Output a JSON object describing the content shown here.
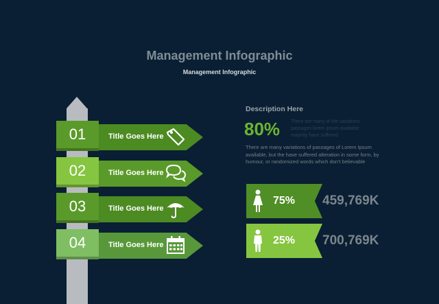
{
  "header": {
    "title": "Management Infographic",
    "subtitle": "Management Infographic"
  },
  "steps": [
    {
      "number": "01",
      "title": "Title Goes Here",
      "icon": "tag-icon",
      "num_color": "#5a9a2a",
      "arrow_color": "#4c8a22"
    },
    {
      "number": "02",
      "title": "Title Goes Here",
      "icon": "chat-bubbles-icon",
      "num_color": "#86c540",
      "arrow_color": "#5a9a2a"
    },
    {
      "number": "03",
      "title": "Title Goes Here",
      "icon": "umbrella-icon",
      "num_color": "#5a9a2a",
      "arrow_color": "#4c8a22"
    },
    {
      "number": "04",
      "title": "Title Goes Here",
      "icon": "calendar-icon",
      "num_color": "#7fbe62",
      "arrow_color": "#58983a"
    }
  ],
  "description": {
    "title": "Description Here",
    "percent": "80%",
    "percent_caption": "There are many of the variations passages lorem ipsum available majority have suffered",
    "body": "There are many variations of passages  of Lorem Ipsum available, but the have suffered alteration in some  form, by humour,  or randomized words  which  don't believable"
  },
  "stats": [
    {
      "icon": "female-person-icon",
      "percent": "75%",
      "value": "459,769K",
      "color": "#4f8f26"
    },
    {
      "icon": "male-person-icon",
      "percent": "25%",
      "value": "700,769K",
      "color": "#86c540"
    }
  ]
}
